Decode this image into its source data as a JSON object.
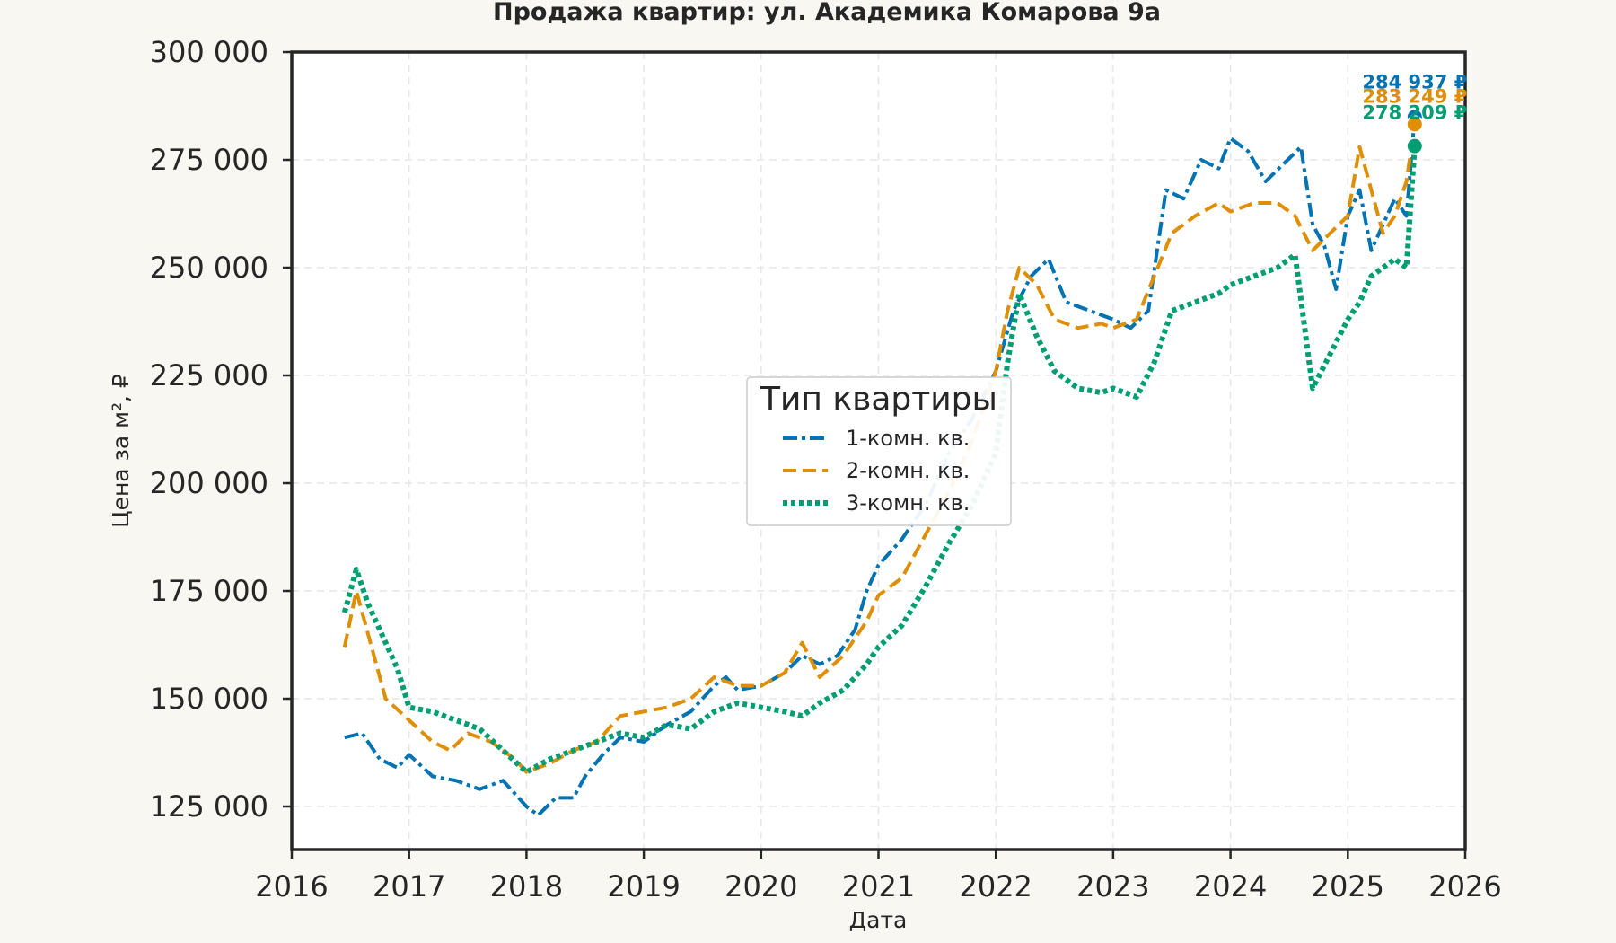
{
  "chart_data": {
    "type": "line",
    "title": "Продажа квартир: ул. Академика Комарова 9а",
    "xlabel": "Дата",
    "ylabel": "Цена за м², ₽",
    "xlim": [
      2016,
      2026
    ],
    "ylim": [
      115000,
      300000
    ],
    "x_ticks": [
      2016,
      2017,
      2018,
      2019,
      2020,
      2021,
      2022,
      2023,
      2024,
      2025,
      2026
    ],
    "x_tick_labels": [
      "2016",
      "2017",
      "2018",
      "2019",
      "2020",
      "2021",
      "2022",
      "2023",
      "2024",
      "2025",
      "2026"
    ],
    "y_ticks": [
      125000,
      150000,
      175000,
      200000,
      225000,
      250000,
      275000,
      300000
    ],
    "y_tick_labels": [
      "125 000",
      "150 000",
      "175 000",
      "200 000",
      "225 000",
      "250 000",
      "275 000",
      "300 000"
    ],
    "grid": true,
    "legend": {
      "title": "Тип квартиры",
      "placement": "center"
    },
    "series": [
      {
        "name": "1-комн. кв.",
        "color": "#0173b2",
        "style": "dashdot",
        "x": [
          2016.45,
          2016.6,
          2016.75,
          2016.9,
          2017.0,
          2017.2,
          2017.4,
          2017.6,
          2017.8,
          2018.0,
          2018.1,
          2018.25,
          2018.4,
          2018.5,
          2018.65,
          2018.8,
          2019.0,
          2019.2,
          2019.4,
          2019.6,
          2019.7,
          2019.8,
          2020.0,
          2020.2,
          2020.35,
          2020.5,
          2020.65,
          2020.8,
          2020.9,
          2021.0,
          2021.2,
          2021.4,
          2021.6,
          2021.8,
          2022.0,
          2022.15,
          2022.3,
          2022.45,
          2022.6,
          2022.8,
          2023.0,
          2023.15,
          2023.3,
          2023.45,
          2023.6,
          2023.75,
          2023.9,
          2024.0,
          2024.15,
          2024.3,
          2024.45,
          2024.6,
          2024.7,
          2024.8,
          2024.9,
          2025.0,
          2025.1,
          2025.2,
          2025.3,
          2025.4,
          2025.5,
          2025.57
        ],
        "y": [
          141000,
          142000,
          136000,
          134000,
          137000,
          132000,
          131000,
          129000,
          131000,
          125000,
          123000,
          127000,
          127000,
          132000,
          137000,
          141000,
          140000,
          144000,
          147000,
          153000,
          155000,
          152000,
          153000,
          156000,
          160000,
          158000,
          160000,
          166000,
          175000,
          181000,
          187000,
          195000,
          207000,
          215000,
          226000,
          240000,
          248000,
          252000,
          242000,
          240000,
          238000,
          236000,
          240000,
          268000,
          266000,
          275000,
          273000,
          280000,
          277000,
          270000,
          274000,
          278000,
          260000,
          255000,
          245000,
          262000,
          268000,
          254000,
          260000,
          266000,
          262000,
          284937
        ]
      },
      {
        "name": "2-комн. кв.",
        "color": "#de8f05",
        "style": "dashed",
        "x": [
          2016.45,
          2016.55,
          2016.65,
          2016.8,
          2017.0,
          2017.2,
          2017.35,
          2017.5,
          2017.7,
          2017.9,
          2018.0,
          2018.2,
          2018.4,
          2018.6,
          2018.8,
          2019.0,
          2019.2,
          2019.4,
          2019.6,
          2019.8,
          2020.0,
          2020.2,
          2020.35,
          2020.5,
          2020.7,
          2020.9,
          2021.0,
          2021.2,
          2021.4,
          2021.6,
          2021.8,
          2022.0,
          2022.1,
          2022.2,
          2022.35,
          2022.5,
          2022.7,
          2022.9,
          2023.0,
          2023.2,
          2023.35,
          2023.5,
          2023.7,
          2023.9,
          2024.0,
          2024.2,
          2024.4,
          2024.55,
          2024.7,
          2024.85,
          2025.0,
          2025.1,
          2025.2,
          2025.3,
          2025.4,
          2025.5,
          2025.57
        ],
        "y": [
          162000,
          175000,
          165000,
          150000,
          145000,
          140000,
          138000,
          142000,
          140000,
          136000,
          133000,
          135000,
          138000,
          140000,
          146000,
          147000,
          148000,
          150000,
          155000,
          153000,
          153000,
          156000,
          163000,
          155000,
          160000,
          168000,
          174000,
          178000,
          188000,
          198000,
          210000,
          226000,
          240000,
          250000,
          246000,
          238000,
          236000,
          237000,
          236000,
          238000,
          248000,
          258000,
          262000,
          265000,
          263000,
          265000,
          265000,
          262000,
          254000,
          258000,
          262000,
          278000,
          268000,
          258000,
          262000,
          270000,
          283249
        ]
      },
      {
        "name": "3-комн. кв.",
        "color": "#029e73",
        "style": "dotted",
        "x": [
          2016.45,
          2016.55,
          2016.65,
          2016.8,
          2016.9,
          2017.0,
          2017.2,
          2017.4,
          2017.6,
          2017.8,
          2018.0,
          2018.2,
          2018.4,
          2018.6,
          2018.8,
          2019.0,
          2019.2,
          2019.4,
          2019.6,
          2019.8,
          2020.0,
          2020.2,
          2020.35,
          2020.5,
          2020.7,
          2020.9,
          2021.0,
          2021.2,
          2021.4,
          2021.6,
          2021.8,
          2022.0,
          2022.1,
          2022.2,
          2022.35,
          2022.5,
          2022.7,
          2022.9,
          2023.0,
          2023.2,
          2023.35,
          2023.5,
          2023.7,
          2023.9,
          2024.0,
          2024.2,
          2024.4,
          2024.55,
          2024.7,
          2024.85,
          2025.0,
          2025.1,
          2025.2,
          2025.3,
          2025.4,
          2025.5,
          2025.57
        ],
        "y": [
          170000,
          180000,
          172000,
          163000,
          157000,
          148000,
          147000,
          145000,
          143000,
          138000,
          133000,
          136000,
          138000,
          140000,
          142000,
          141000,
          144000,
          143000,
          147000,
          149000,
          148000,
          147000,
          146000,
          149000,
          152000,
          158000,
          162000,
          167000,
          176000,
          186000,
          195000,
          207000,
          228000,
          244000,
          234000,
          226000,
          222000,
          221000,
          222000,
          220000,
          228000,
          240000,
          242000,
          244000,
          246000,
          248000,
          250000,
          253000,
          222000,
          230000,
          238000,
          242000,
          248000,
          250000,
          252000,
          250000,
          278209
        ]
      }
    ],
    "end_labels": [
      {
        "series": "1-комн. кв.",
        "value": 284937,
        "text": "284 937 ₽"
      },
      {
        "series": "2-комн. кв.",
        "value": 283249,
        "text": "283 249 ₽"
      },
      {
        "series": "3-комн. кв.",
        "value": 278209,
        "text": "278 209 ₽"
      }
    ]
  }
}
